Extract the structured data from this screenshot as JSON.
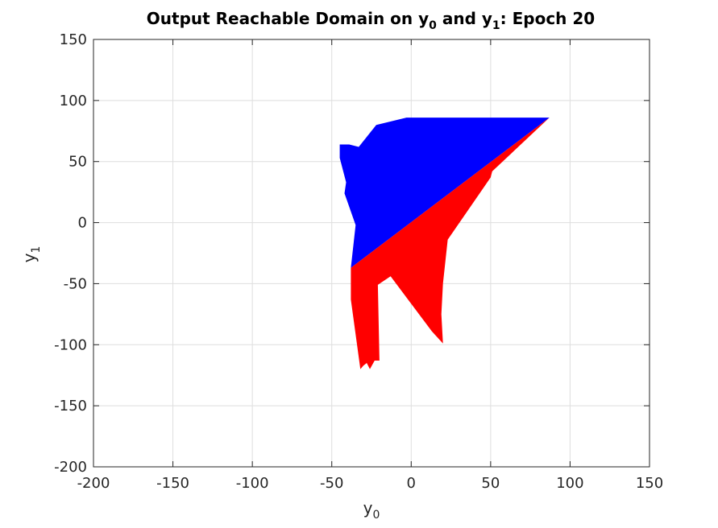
{
  "chart_data": {
    "type": "area",
    "title": {
      "prefix": "Output Reachable Domain on y",
      "sub0": "0",
      "middle": " and y",
      "sub1": "1",
      "suffix": ": Epoch 20"
    },
    "xlabel": {
      "base": "y",
      "sub": "0"
    },
    "ylabel": {
      "base": "y",
      "sub": "1"
    },
    "xlim": [
      -200,
      150
    ],
    "ylim": [
      -200,
      150
    ],
    "xticks": [
      -200,
      -150,
      -100,
      -50,
      0,
      50,
      100,
      150
    ],
    "yticks": [
      -200,
      -150,
      -100,
      -50,
      0,
      50,
      100,
      150
    ],
    "grid": true,
    "series": [
      {
        "color": "#0000ff",
        "points": [
          [
            -45,
            64
          ],
          [
            -39,
            64
          ],
          [
            -33,
            62
          ],
          [
            -22,
            80
          ],
          [
            -3,
            86
          ],
          [
            87,
            86
          ],
          [
            -38,
            -37
          ],
          [
            -35,
            -2
          ],
          [
            -42,
            24
          ],
          [
            -41,
            33
          ],
          [
            -45,
            53
          ]
        ]
      },
      {
        "color": "#ff0000",
        "points": [
          [
            -38,
            -37
          ],
          [
            87,
            86
          ],
          [
            51,
            42
          ],
          [
            50,
            37
          ],
          [
            23,
            -14
          ],
          [
            20,
            -50
          ],
          [
            19,
            -75
          ],
          [
            20,
            -99
          ],
          [
            13,
            -89
          ],
          [
            -13,
            -44
          ],
          [
            -21,
            -51
          ],
          [
            -20,
            -113
          ],
          [
            -23,
            -113
          ],
          [
            -26,
            -120
          ],
          [
            -28,
            -115
          ],
          [
            -30,
            -117
          ],
          [
            -32,
            -120
          ],
          [
            -38,
            -63
          ]
        ]
      }
    ]
  }
}
